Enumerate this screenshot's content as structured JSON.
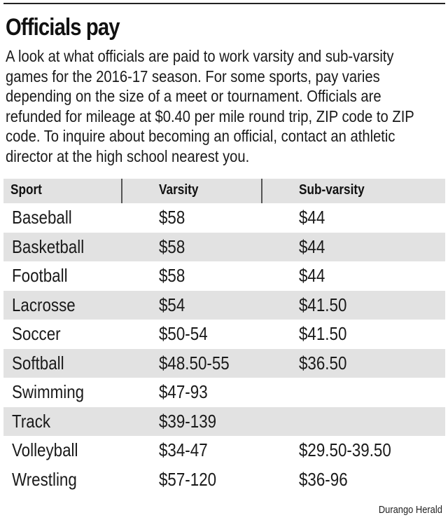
{
  "title": "Officials pay",
  "description": "A look at what officials are paid to work varsity and sub-varsity games for the 2016-17 season. For some sports, pay varies depending on the size of a meet or tournament. Officials are refunded for mileage at $0.40 per mile round trip, ZIP code to ZIP code. To inquire about becoming an official, contact an athletic director at the high school nearest you.",
  "source": "Durango Herald",
  "chart_data": {
    "type": "table",
    "columns": [
      "Sport",
      "Varsity",
      "Sub-varsity"
    ],
    "rows": [
      [
        "Baseball",
        "$58",
        "$44"
      ],
      [
        "Basketball",
        "$58",
        "$44"
      ],
      [
        "Football",
        "$58",
        "$44"
      ],
      [
        "Lacrosse",
        "$54",
        "$41.50"
      ],
      [
        "Soccer",
        "$50-54",
        "$41.50"
      ],
      [
        "Softball",
        "$48.50-55",
        "$36.50"
      ],
      [
        "Swimming",
        "$47-93",
        ""
      ],
      [
        "Track",
        "$39-139",
        ""
      ],
      [
        "Volleyball",
        "$34-47",
        "$29.50-39.50"
      ],
      [
        "Wrestling",
        "$57-120",
        "$36-96"
      ]
    ],
    "shaded_rows": [
      1,
      3,
      5,
      7
    ],
    "colors": {
      "header_bg": "#e2e2e2",
      "stripe_bg": "#e2e2e2",
      "text": "#1a1a1a"
    }
  }
}
